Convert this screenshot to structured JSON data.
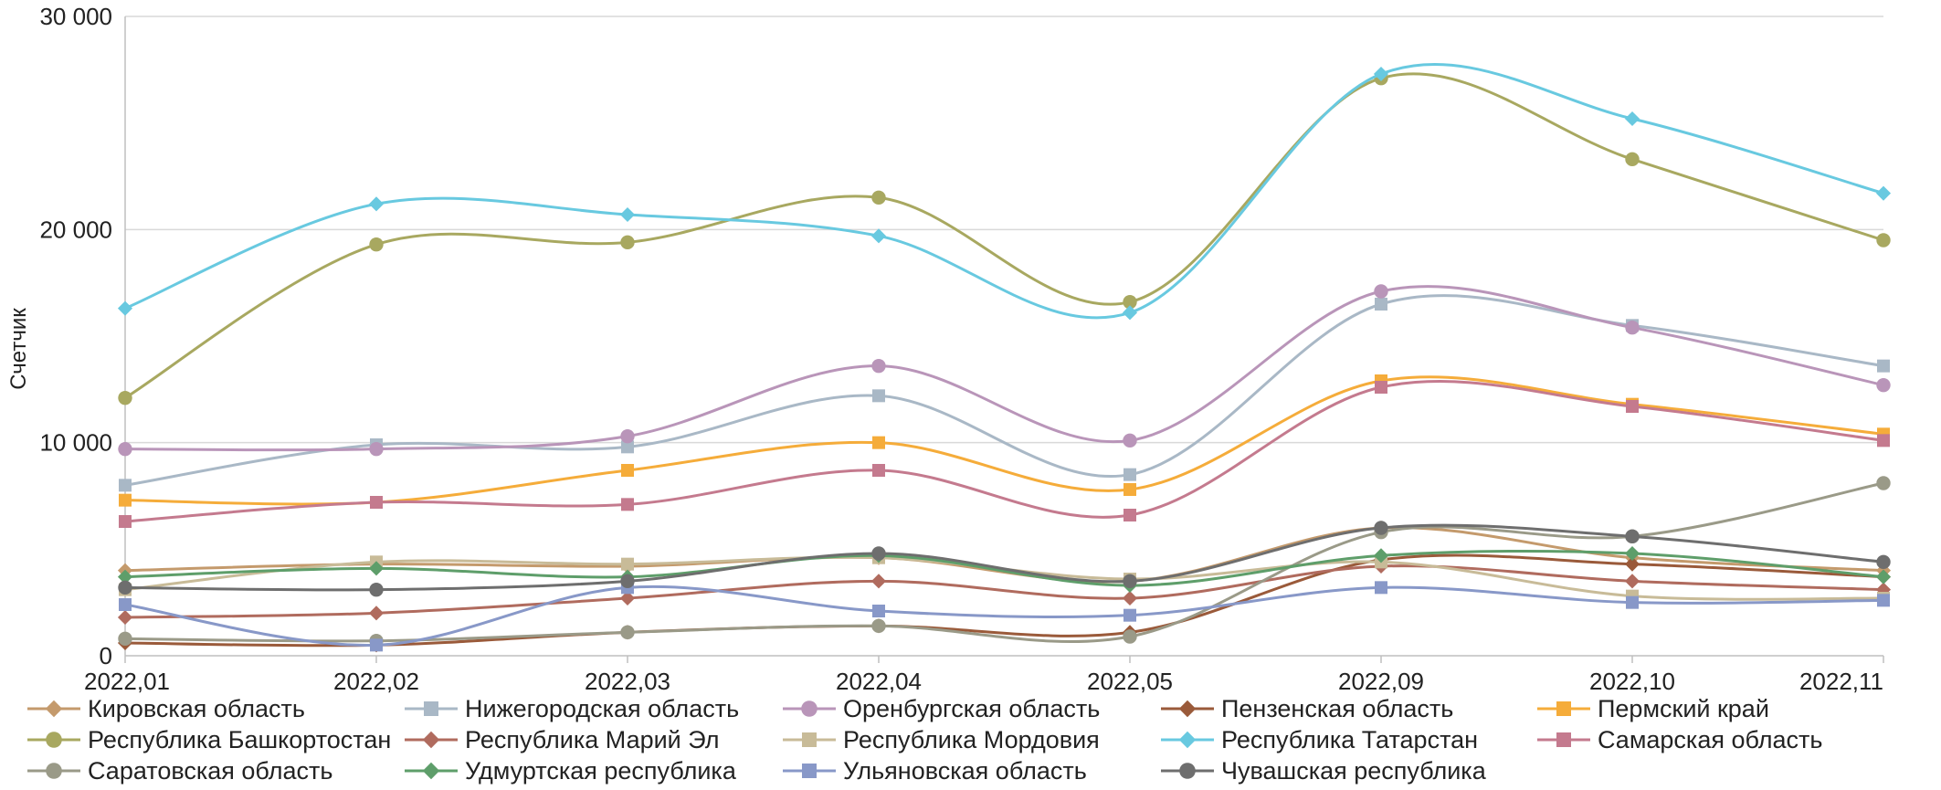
{
  "chart_data": {
    "type": "line",
    "title": "",
    "xlabel": "",
    "ylabel": "Счетчик",
    "ylim": [
      0,
      30000
    ],
    "yticks": [
      0,
      10000,
      20000,
      30000
    ],
    "ytick_labels": [
      "0",
      "10 000",
      "20 000",
      "30 000"
    ],
    "grid": "horizontal",
    "legend_position": "bottom",
    "categories": [
      "2022,01",
      "2022,02",
      "2022,03",
      "2022,04",
      "2022,05",
      "2022,09",
      "2022,10",
      "2022,11"
    ],
    "series": [
      {
        "name": "Кировская область",
        "color": "#C49A6C",
        "marker": "diamond",
        "values": [
          4000,
          4300,
          4200,
          4600,
          3500,
          6000,
          4600,
          4000
        ]
      },
      {
        "name": "Нижегородская область",
        "color": "#A9B8C6",
        "marker": "square",
        "values": [
          8000,
          9900,
          9800,
          12200,
          8500,
          16500,
          15500,
          13600
        ]
      },
      {
        "name": "Оренбургская область",
        "color": "#B995B9",
        "marker": "circle",
        "values": [
          9700,
          9700,
          10300,
          13600,
          10100,
          17100,
          15400,
          12700
        ]
      },
      {
        "name": "Пензенская область",
        "color": "#9A5A3A",
        "marker": "diamond",
        "values": [
          600,
          500,
          1100,
          1400,
          1100,
          4500,
          4300,
          3700
        ]
      },
      {
        "name": "Пермский край",
        "color": "#F5AC3A",
        "marker": "square",
        "values": [
          7300,
          7200,
          8700,
          10000,
          7800,
          12900,
          11800,
          10400
        ]
      },
      {
        "name": "Республика Башкортостан",
        "color": "#A8A860",
        "marker": "circle",
        "values": [
          12100,
          19300,
          19400,
          21500,
          16600,
          27100,
          23300,
          19500
        ]
      },
      {
        "name": "Республика Марий Эл",
        "color": "#B06B5E",
        "marker": "diamond",
        "values": [
          1800,
          2000,
          2700,
          3500,
          2700,
          4200,
          3500,
          3100
        ]
      },
      {
        "name": "Республика Мордовия",
        "color": "#C8BB98",
        "marker": "square",
        "values": [
          3100,
          4400,
          4300,
          4600,
          3600,
          4400,
          2800,
          2700
        ]
      },
      {
        "name": "Республика Татарстан",
        "color": "#68C9E0",
        "marker": "diamond",
        "values": [
          16300,
          21200,
          20700,
          19700,
          16100,
          27300,
          25200,
          21700
        ]
      },
      {
        "name": "Самарская область",
        "color": "#C47A8E",
        "marker": "square",
        "values": [
          6300,
          7200,
          7100,
          8700,
          6600,
          12600,
          11700,
          10100
        ]
      },
      {
        "name": "Саратовская область",
        "color": "#9A9A88",
        "marker": "circle",
        "values": [
          800,
          700,
          1100,
          1400,
          900,
          5800,
          5600,
          8100
        ]
      },
      {
        "name": "Удмуртская республика",
        "color": "#5E9E6A",
        "marker": "diamond",
        "values": [
          3700,
          4100,
          3700,
          4700,
          3300,
          4700,
          4800,
          3700
        ]
      },
      {
        "name": "Ульяновская область",
        "color": "#8898C8",
        "marker": "square",
        "values": [
          2400,
          500,
          3200,
          2100,
          1900,
          3200,
          2500,
          2600
        ]
      },
      {
        "name": "Чувашская республика",
        "color": "#6E6E6E",
        "marker": "circle",
        "values": [
          3200,
          3100,
          3500,
          4800,
          3500,
          6000,
          5600,
          4400
        ]
      }
    ]
  }
}
